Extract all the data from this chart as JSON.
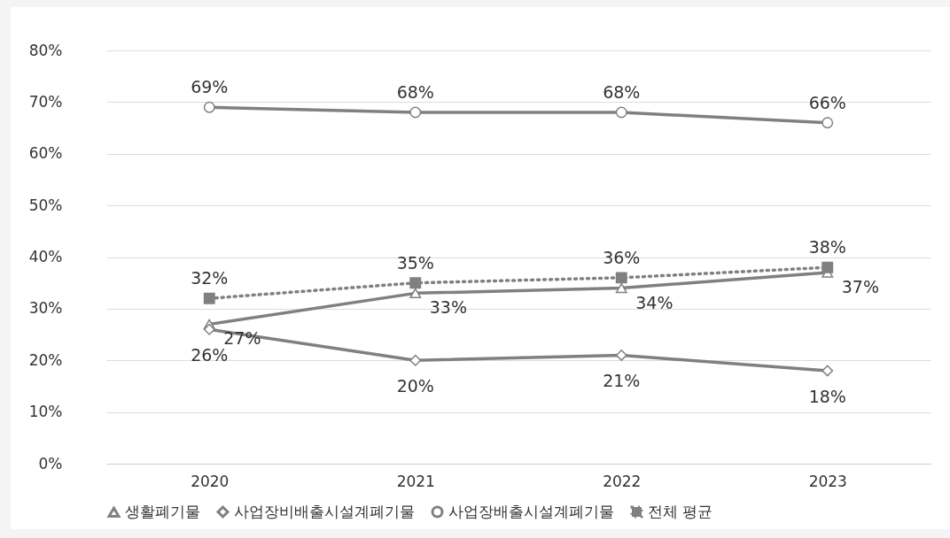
{
  "chart_data": {
    "type": "line",
    "categories": [
      "2020",
      "2021",
      "2022",
      "2023"
    ],
    "series": [
      {
        "name": "생활폐기물",
        "color": "#808080",
        "marker": "triangle",
        "line_style": "solid",
        "values": [
          27,
          33,
          34,
          37
        ],
        "value_labels": [
          "27%",
          "33%",
          "34%",
          "37%"
        ]
      },
      {
        "name": "사업장비배출시설계폐기물",
        "color": "#808080",
        "marker": "diamond",
        "line_style": "solid",
        "values": [
          26,
          20,
          21,
          18
        ],
        "value_labels": [
          "26%",
          "20%",
          "21%",
          "18%"
        ]
      },
      {
        "name": "사업장배출시설계폐기물",
        "color": "#808080",
        "marker": "circle",
        "line_style": "solid",
        "values": [
          69,
          68,
          68,
          66
        ],
        "value_labels": [
          "69%",
          "68%",
          "68%",
          "66%"
        ]
      },
      {
        "name": "전체 평균",
        "color": "#808080",
        "marker": "square",
        "line_style": "dotted",
        "values": [
          32,
          35,
          36,
          38
        ],
        "value_labels": [
          "32%",
          "35%",
          "36%",
          "38%"
        ]
      }
    ],
    "ylim": [
      0,
      80
    ],
    "yticks": [
      {
        "value": 0,
        "label": "0%"
      },
      {
        "value": 10,
        "label": "10%"
      },
      {
        "value": 20,
        "label": "20%"
      },
      {
        "value": 30,
        "label": "30%"
      },
      {
        "value": 40,
        "label": "40%"
      },
      {
        "value": 50,
        "label": "50%"
      },
      {
        "value": 60,
        "label": "60%"
      },
      {
        "value": 70,
        "label": "70%"
      },
      {
        "value": 80,
        "label": "80%"
      }
    ],
    "grid": "y",
    "legend": "bottom"
  }
}
